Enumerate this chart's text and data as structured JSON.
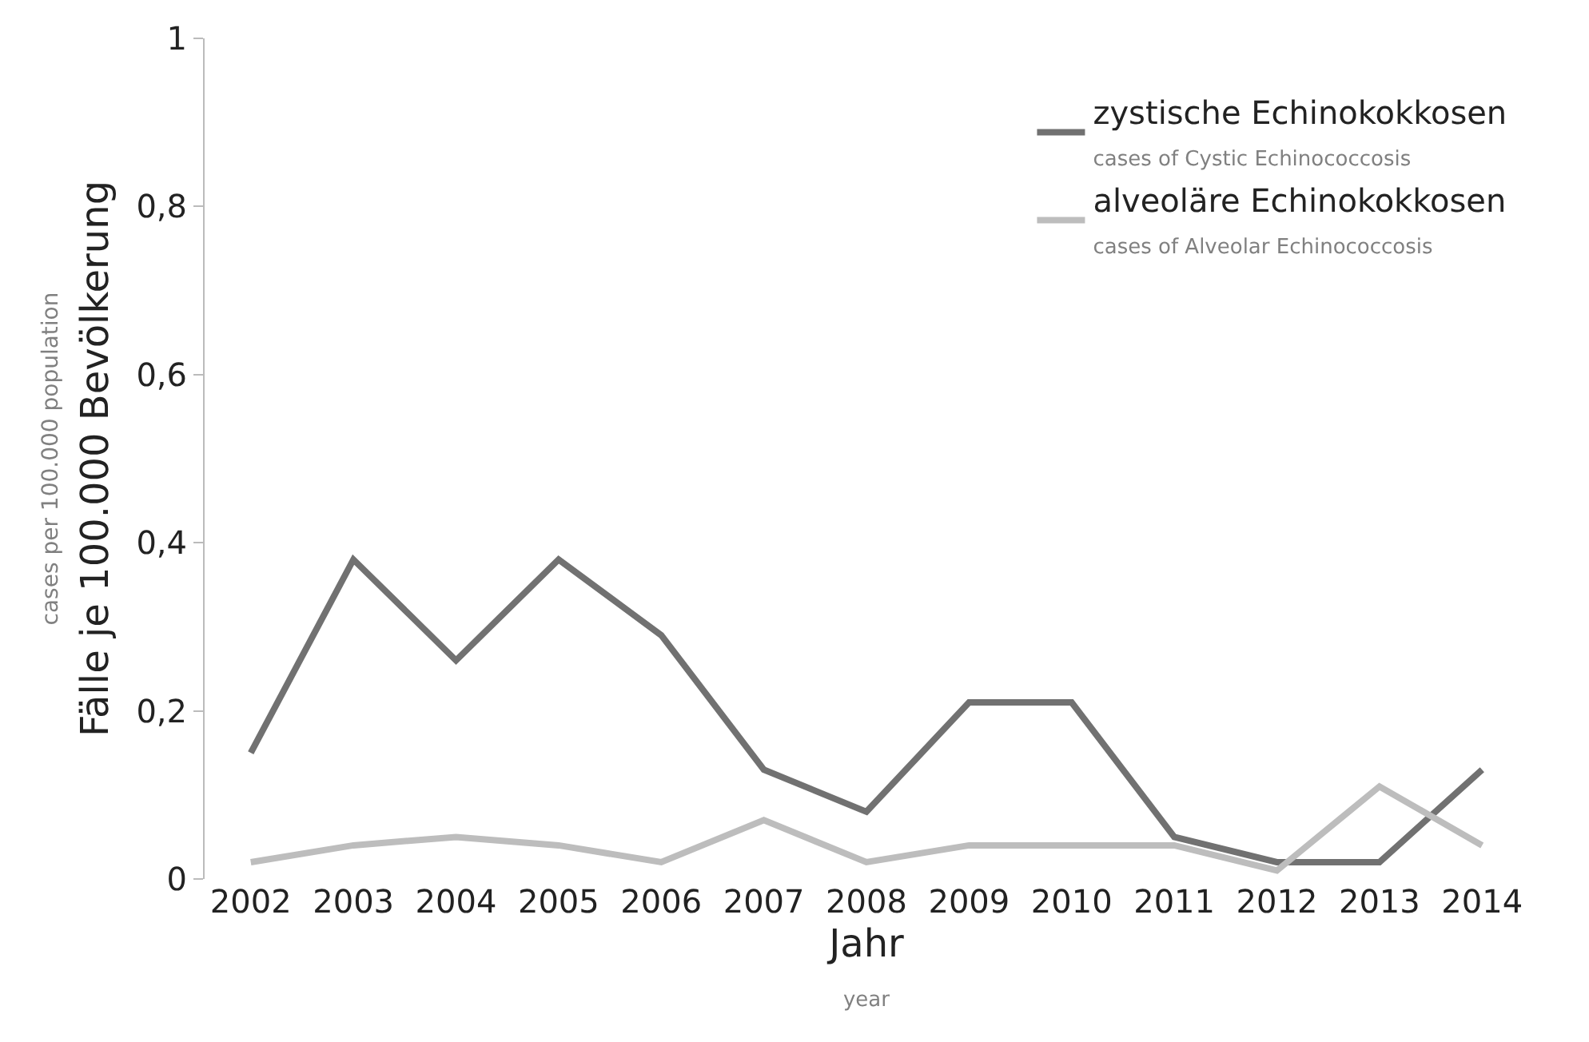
{
  "chart_data": {
    "type": "line",
    "xlabel": "Jahr",
    "ylabel": "Fälle je 100.000 Bevölkerung",
    "annotations": [
      "cases of Cystic Echinococcosis",
      "cases of Alveolar Echinococcosis",
      "cases per 100.000 population",
      "year"
    ],
    "categories": [
      "2002",
      "2003",
      "2004",
      "2005",
      "2006",
      "2007",
      "2008",
      "2009",
      "2010",
      "2011",
      "2012",
      "2013",
      "2014"
    ],
    "series": [
      {
        "name": "zystische Echinokokkosen",
        "color": "#717171",
        "values": [
          0.15,
          0.38,
          0.26,
          0.38,
          0.29,
          0.13,
          0.08,
          0.21,
          0.21,
          0.05,
          0.02,
          0.02,
          0.13
        ]
      },
      {
        "name": "alveoläre Echinokokkosen",
        "color": "#bdbdbd",
        "values": [
          0.02,
          0.04,
          0.05,
          0.04,
          0.02,
          0.07,
          0.02,
          0.04,
          0.04,
          0.04,
          0.01,
          0.11,
          0.04
        ]
      }
    ],
    "ylim": [
      0,
      1
    ],
    "yticks": [
      0,
      {
        "value": 0.2,
        "label": "0,2"
      },
      {
        "value": 0.4,
        "label": "0,4"
      },
      {
        "value": 0.6,
        "label": "0,6"
      },
      {
        "value": 0.8,
        "label": "0,8"
      },
      1
    ],
    "grid": false,
    "legend": "top right",
    "marker": "none",
    "line_style": "solid"
  }
}
